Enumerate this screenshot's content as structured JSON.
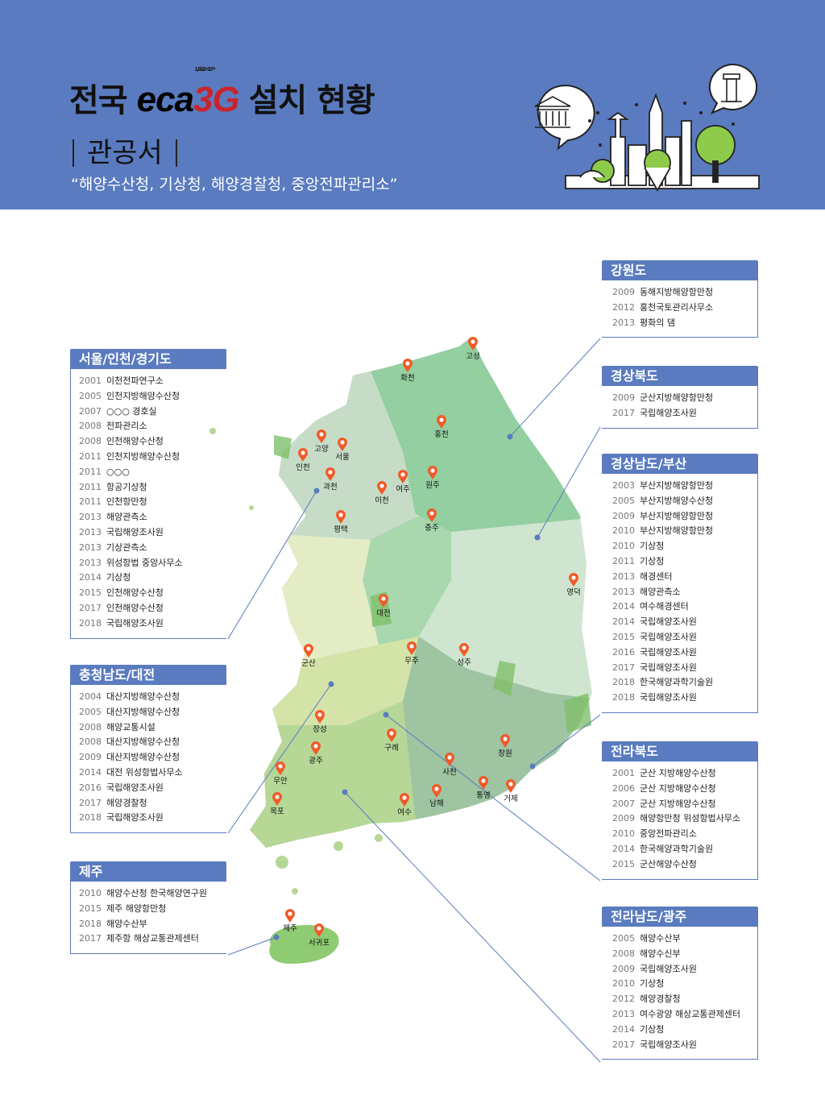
{
  "header": {
    "title_prefix": "전국",
    "logo_text_black": "eca",
    "logo_text_red": "3G",
    "logo_superscript": "1,602×10¹⁹",
    "title_suffix": "설치 현황",
    "subtitle": "관공서",
    "description": "“해양수산청, 기상청, 해양경찰청, 중앙전파관리소”"
  },
  "colors": {
    "header_bg": "#5a7bbf",
    "box_header": "#5a7bbf",
    "pin": "#f05a28",
    "logo_red": "#c8242b"
  },
  "regions": [
    {
      "title": "강원도",
      "side": "right",
      "items": [
        {
          "year": "2009",
          "name": "동해지방해양항만청"
        },
        {
          "year": "2012",
          "name": "홍천국토관리사무소"
        },
        {
          "year": "2013",
          "name": "평화의 댐"
        }
      ]
    },
    {
      "title": "경상북도",
      "side": "right",
      "items": [
        {
          "year": "2009",
          "name": "군산지방해양항만청"
        },
        {
          "year": "2017",
          "name": "국립해양조사원"
        }
      ]
    },
    {
      "title": "경상남도/부산",
      "side": "right",
      "items": [
        {
          "year": "2003",
          "name": "부산지방해양항만청"
        },
        {
          "year": "2005",
          "name": "부산지방해양수산청"
        },
        {
          "year": "2009",
          "name": "부산지방해양항만청"
        },
        {
          "year": "2010",
          "name": "부산지방해양항만청"
        },
        {
          "year": "2010",
          "name": "기상청"
        },
        {
          "year": "2011",
          "name": "기상청"
        },
        {
          "year": "2013",
          "name": "해경센터"
        },
        {
          "year": "2013",
          "name": "해양관측소"
        },
        {
          "year": "2014",
          "name": "여수해경센터"
        },
        {
          "year": "2014",
          "name": "국립해양조사원"
        },
        {
          "year": "2015",
          "name": "국립해양조사원"
        },
        {
          "year": "2016",
          "name": "국립해양조사원"
        },
        {
          "year": "2017",
          "name": "국립해양조사원"
        },
        {
          "year": "2018",
          "name": "한국해양과학기술원"
        },
        {
          "year": "2018",
          "name": "국립해양조사원"
        }
      ]
    },
    {
      "title": "전라북도",
      "side": "right",
      "items": [
        {
          "year": "2001",
          "name": "군산 지방해양수산청"
        },
        {
          "year": "2006",
          "name": "군산 지방해양수산청"
        },
        {
          "year": "2007",
          "name": "군산 지방해양수산청"
        },
        {
          "year": "2009",
          "name": "해양항만청 위성항법사무소"
        },
        {
          "year": "2010",
          "name": "중앙전파관리소"
        },
        {
          "year": "2014",
          "name": "한국해양과학기술원"
        },
        {
          "year": "2015",
          "name": "군산해양수산청"
        }
      ]
    },
    {
      "title": "전라남도/광주",
      "side": "right",
      "items": [
        {
          "year": "2005",
          "name": "해양수산부"
        },
        {
          "year": "2008",
          "name": "해양수신부"
        },
        {
          "year": "2009",
          "name": "국립해양조사원"
        },
        {
          "year": "2010",
          "name": "기상청"
        },
        {
          "year": "2012",
          "name": "해양경찰청"
        },
        {
          "year": "2013",
          "name": "여수광양 해상교통관제센터"
        },
        {
          "year": "2014",
          "name": "기상청"
        },
        {
          "year": "2017",
          "name": "국립해양조사원"
        }
      ]
    },
    {
      "title": "서울/인천/경기도",
      "side": "left",
      "items": [
        {
          "year": "2001",
          "name": "이천전파연구소"
        },
        {
          "year": "2005",
          "name": "인천지방해양수산청"
        },
        {
          "year": "2007",
          "name": "○○○ 경호실"
        },
        {
          "year": "2008",
          "name": "전파관리소"
        },
        {
          "year": "2008",
          "name": "인천해양수산청"
        },
        {
          "year": "2011",
          "name": "인천지방해양수산청"
        },
        {
          "year": "2011",
          "name": "○○○"
        },
        {
          "year": "2011",
          "name": "항공기상청"
        },
        {
          "year": "2011",
          "name": "인천항만청"
        },
        {
          "year": "2013",
          "name": "해양관측소"
        },
        {
          "year": "2013",
          "name": "국립해양조사원"
        },
        {
          "year": "2013",
          "name": "기상관측소"
        },
        {
          "year": "2013",
          "name": "위성항법 중앙사무소"
        },
        {
          "year": "2014",
          "name": "기상청"
        },
        {
          "year": "2015",
          "name": "인천해양수산청"
        },
        {
          "year": "2017",
          "name": "인천해양수산청"
        },
        {
          "year": "2018",
          "name": "국립해양조사원"
        }
      ]
    },
    {
      "title": "충청남도/대전",
      "side": "left",
      "items": [
        {
          "year": "2004",
          "name": "대산지방해양수산청"
        },
        {
          "year": "2005",
          "name": "대산지방해양수산청"
        },
        {
          "year": "2008",
          "name": "해양교통시설"
        },
        {
          "year": "2008",
          "name": "대산지방해양수산청"
        },
        {
          "year": "2009",
          "name": "대산지방해양수산청"
        },
        {
          "year": "2014",
          "name": "대전 위성항법사무소"
        },
        {
          "year": "2016",
          "name": "국립해양조사원"
        },
        {
          "year": "2017",
          "name": "해양경찰청"
        },
        {
          "year": "2018",
          "name": "국립해양조사원"
        }
      ]
    },
    {
      "title": "제주",
      "side": "left",
      "items": [
        {
          "year": "2010",
          "name": "해양수산청 한국해양연구원"
        },
        {
          "year": "2015",
          "name": "제주 해양항만청"
        },
        {
          "year": "2018",
          "name": "해양수산부"
        },
        {
          "year": "2017",
          "name": "제주항 해상교통관제센터"
        }
      ]
    }
  ],
  "map": {
    "pins": [
      "고성",
      "화천",
      "홍천",
      "고양",
      "서울",
      "인천",
      "과천",
      "여주",
      "원주",
      "이천",
      "평택",
      "충주",
      "영덕",
      "대전",
      "군산",
      "무주",
      "성주",
      "장성",
      "구례",
      "광주",
      "창원",
      "사천",
      "무안",
      "통영",
      "거제",
      "남해",
      "여수",
      "목포",
      "제주",
      "서귀포"
    ]
  }
}
